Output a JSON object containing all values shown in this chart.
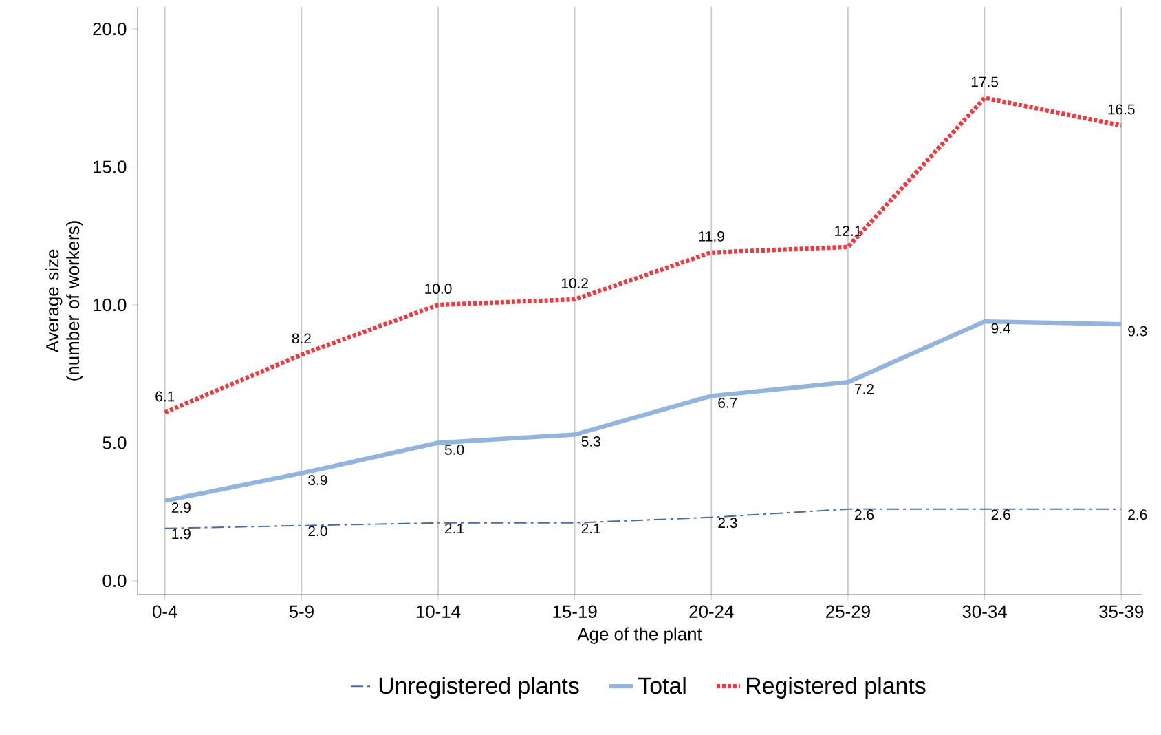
{
  "chart_data": {
    "type": "line",
    "xlabel": "Age of the plant",
    "ylabel": "Average size (number of workers)",
    "categories": [
      "0-4",
      "5-9",
      "10-14",
      "15-19",
      "20-24",
      "25-29",
      "30-34",
      "35-39"
    ],
    "ylim": [
      -0.5,
      20.8
    ],
    "yticks": [
      {
        "value": 0,
        "label": "0.0"
      },
      {
        "value": 5,
        "label": "5.0"
      },
      {
        "value": 10,
        "label": "10.0"
      },
      {
        "value": 15,
        "label": "15.0"
      },
      {
        "value": 20,
        "label": "20.0"
      }
    ],
    "grid": "x",
    "legend": "bottom",
    "marker": "none",
    "series": [
      {
        "name": "Unregistered plants",
        "color": "#4a6aa5",
        "line_style": "dashed",
        "values": [
          1.9,
          2.0,
          2.1,
          2.1,
          2.3,
          2.6,
          2.6,
          2.6
        ],
        "value_labels": [
          "1.9",
          "2.0",
          "2.1",
          "2.1",
          "2.3",
          "2.6",
          "2.6",
          "2.6"
        ]
      },
      {
        "name": "Total",
        "color": "#93b4dc",
        "line_style": "solid",
        "values": [
          2.9,
          3.9,
          5.0,
          5.3,
          6.7,
          7.2,
          9.4,
          9.3
        ],
        "value_labels": [
          "2.9",
          "3.9",
          "5.0",
          "5.3",
          "6.7",
          "7.2",
          "9.4",
          "9.3"
        ]
      },
      {
        "name": "Registered plants",
        "color": "#f0393f",
        "line_style": "dotted",
        "values": [
          6.1,
          8.2,
          10.0,
          10.2,
          11.9,
          12.1,
          17.5,
          16.5
        ],
        "value_labels": [
          "6.1",
          "8.2",
          "10.0",
          "10.2",
          "11.9",
          "12.1",
          "17.5",
          "16.5"
        ]
      }
    ]
  }
}
